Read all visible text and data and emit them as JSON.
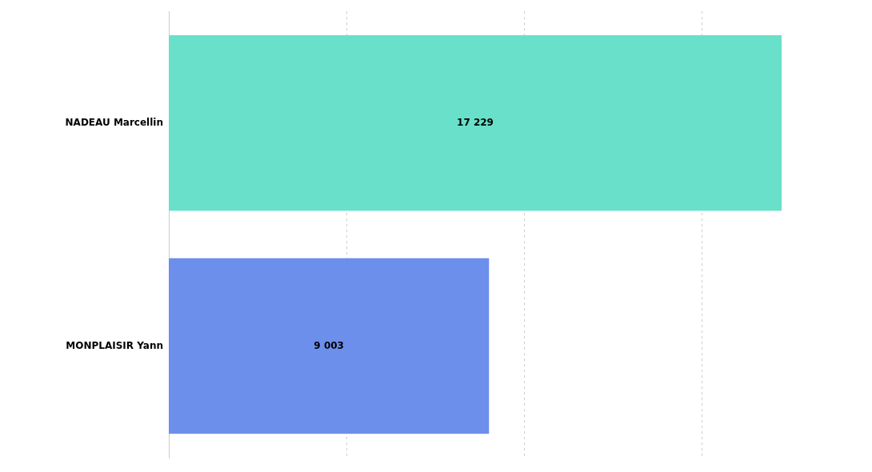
{
  "chart_data": {
    "type": "bar",
    "orientation": "horizontal",
    "categories": [
      "NADEAU Marcellin",
      "MONPLAISIR Yann"
    ],
    "values": [
      17229,
      9003
    ],
    "colors": [
      "#69e0c9",
      "#6d8fec"
    ],
    "value_labels": [
      "17 229",
      "9 003"
    ],
    "xticks": [
      {
        "value": 5000,
        "label": null
      },
      {
        "value": 10000,
        "label": null
      },
      {
        "value": 15000,
        "label": null
      }
    ],
    "grid": "x",
    "tick_labels": "y"
  }
}
